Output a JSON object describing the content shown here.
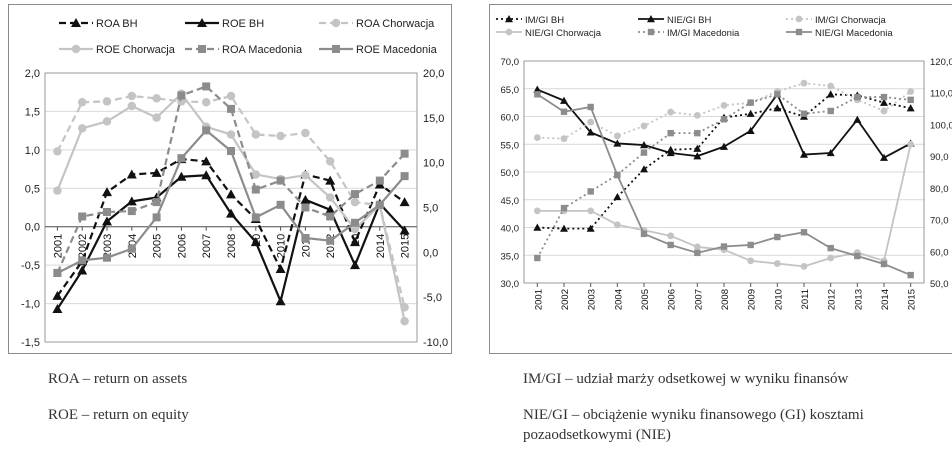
{
  "chart_data": [
    {
      "type": "line",
      "x": [
        "2001",
        "2002",
        "2003",
        "2004",
        "2005",
        "2006",
        "2007",
        "2008",
        "2009",
        "2010",
        "2011",
        "2012",
        "2013",
        "2014",
        "2015"
      ],
      "x_tick_labels": [
        "2001",
        "2002",
        "2003",
        "2004",
        "2005",
        "2006",
        "2007",
        "2008",
        "20",
        "2010",
        "2011",
        "2012",
        "20",
        "2014",
        "2015"
      ],
      "ylim_left": [
        -1.5,
        2.0
      ],
      "yticks_left": [
        "2,0",
        "1,5",
        "1,0",
        "0,5",
        "0,0",
        "-0,5",
        "-1,0",
        "-1,5"
      ],
      "ylim_right": [
        -10.0,
        20.0
      ],
      "yticks_right": [
        "20,0",
        "15,0",
        "10,0",
        "5,0",
        "0,0",
        "-5,0",
        "-10,0"
      ],
      "legend": "top",
      "series": [
        {
          "name": "ROA BH",
          "axis": "left",
          "color": "#111111",
          "dash": "7,4",
          "marker": "triangle",
          "values": [
            -0.9,
            -0.45,
            0.45,
            0.68,
            0.7,
            0.88,
            0.85,
            0.42,
            0.1,
            -0.55,
            0.68,
            0.6,
            -0.2,
            0.55,
            0.32
          ]
        },
        {
          "name": "ROE BH",
          "axis": "left",
          "color": "#111111",
          "dash": "",
          "marker": "triangle",
          "values": [
            -1.07,
            -0.57,
            0.07,
            0.33,
            0.38,
            0.65,
            0.67,
            0.17,
            -0.2,
            -0.97,
            0.35,
            0.22,
            -0.5,
            0.3,
            -0.05
          ]
        },
        {
          "name": "ROA Chorwacja",
          "axis": "left",
          "color": "#c4c4c4",
          "dash": "7,4",
          "marker": "circle",
          "values": [
            0.98,
            1.62,
            1.63,
            1.7,
            1.67,
            1.63,
            1.62,
            1.7,
            1.2,
            1.18,
            1.22,
            0.85,
            0.32,
            0.28,
            -1.05
          ]
        },
        {
          "name": "ROE Chorwacja",
          "axis": "left",
          "color": "#c4c4c4",
          "dash": "",
          "marker": "circle",
          "values": [
            0.47,
            1.28,
            1.37,
            1.57,
            1.42,
            1.73,
            1.3,
            1.2,
            0.68,
            0.62,
            0.67,
            0.38,
            -0.03,
            0.28,
            -1.23
          ]
        },
        {
          "name": "ROA Macedonia",
          "axis": "right",
          "color": "#8c8c8c",
          "dash": "7,4",
          "marker": "square",
          "values": [
            -2.3,
            4.0,
            4.5,
            4.6,
            5.6,
            17.5,
            18.5,
            16.0,
            7.0,
            8.0,
            5.0,
            4.0,
            6.5,
            8.0,
            11.0
          ]
        },
        {
          "name": "ROE Macedonia",
          "axis": "right",
          "color": "#8c8c8c",
          "dash": "",
          "marker": "square",
          "values": [
            -2.3,
            -0.9,
            -0.6,
            0.4,
            3.9,
            10.5,
            13.6,
            11.3,
            3.9,
            5.3,
            1.6,
            1.3,
            3.3,
            5.3,
            8.5
          ]
        }
      ]
    },
    {
      "type": "line",
      "x": [
        "2001",
        "2002",
        "2003",
        "2004",
        "2005",
        "2006",
        "2007",
        "2008",
        "2009",
        "2010",
        "2011",
        "2012",
        "2013",
        "2014",
        "2015"
      ],
      "ylim_left": [
        30.0,
        70.0
      ],
      "yticks_left": [
        "70,0",
        "65,0",
        "60,0",
        "55,0",
        "50,0",
        "45,0",
        "40,0",
        "35,0",
        "30,0"
      ],
      "ylim_right": [
        50.0,
        120.0
      ],
      "yticks_right": [
        "120,0",
        "110,0",
        "100,0",
        "90,0",
        "80,0",
        "70,0",
        "60,0",
        "50,0"
      ],
      "legend": "top",
      "series": [
        {
          "name": "IM/GI BH",
          "axis": "left",
          "color": "#111111",
          "dash": "2,3",
          "marker": "triangle",
          "values": [
            40.0,
            39.8,
            39.8,
            45.5,
            50.5,
            54.0,
            54.2,
            59.8,
            60.5,
            61.5,
            60.0,
            64.0,
            63.8,
            62.5,
            61.5
          ]
        },
        {
          "name": "NIE/GI BH",
          "axis": "right",
          "color": "#111111",
          "dash": "",
          "marker": "triangle",
          "values": [
            111.0,
            107.5,
            97.5,
            94.0,
            93.5,
            91.0,
            90.0,
            93.0,
            98.0,
            109.5,
            90.5,
            91.0,
            101.5,
            89.5,
            94.0
          ]
        },
        {
          "name": "IM/GI Chorwacja",
          "axis": "left",
          "color": "#c4c4c4",
          "dash": "2,3",
          "marker": "circle",
          "values": [
            56.2,
            56.0,
            59.0,
            56.5,
            58.3,
            60.8,
            60.2,
            62.0,
            62.5,
            64.5,
            66.0,
            65.5,
            63.0,
            61.0,
            64.5
          ]
        },
        {
          "name": "NIE/GI Chorwacja",
          "axis": "left",
          "color": "#c4c4c4",
          "dash": "",
          "marker": "circle",
          "values": [
            43.0,
            43.0,
            43.0,
            40.5,
            39.5,
            38.5,
            36.5,
            36.0,
            34.0,
            33.5,
            33.0,
            34.5,
            35.5,
            34.0,
            55.0
          ]
        },
        {
          "name": "IM/GI Macedonia",
          "axis": "left",
          "color": "#8c8c8c",
          "dash": "2,3",
          "marker": "square",
          "values": [
            34.5,
            43.5,
            46.5,
            49.5,
            53.5,
            57.0,
            57.0,
            59.5,
            62.5,
            64.0,
            60.5,
            61.0,
            63.5,
            63.5,
            63.0
          ]
        },
        {
          "name": "NIE/GI Macedonia",
          "axis": "right",
          "color": "#8c8c8c",
          "dash": "",
          "marker": "square",
          "values": [
            109.5,
            104.0,
            105.5,
            84.0,
            65.5,
            62.0,
            59.5,
            61.5,
            62.0,
            64.5,
            66.0,
            61.0,
            58.5,
            56.0,
            52.5
          ]
        }
      ]
    }
  ],
  "notes": {
    "roa": "ROA – return on assets",
    "roe": "ROE – return on equity",
    "im": "IM/GI – udział marży odsetkowej w wyniku finansów",
    "nie": "NIE/GI – obciążenie wyniku finansowego (GI) kosztami pozaodsetkowymi (NIE)"
  }
}
